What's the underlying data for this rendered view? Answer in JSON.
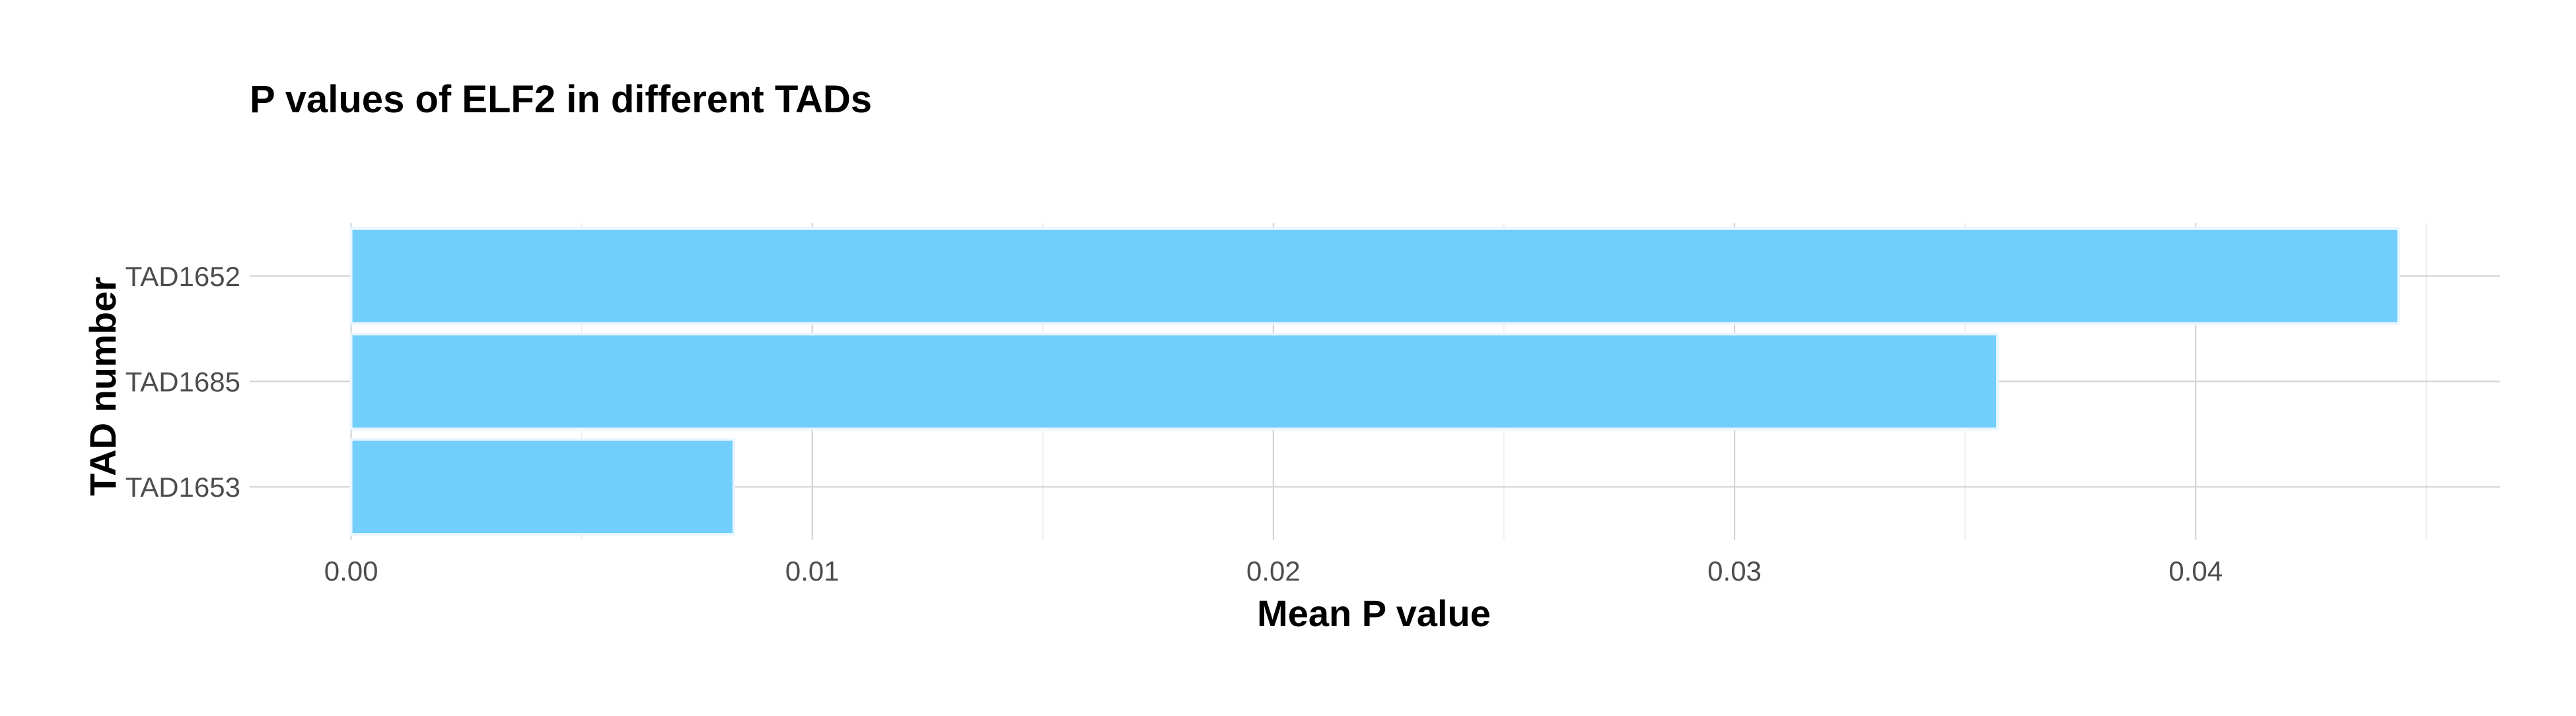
{
  "chart_data": {
    "type": "bar",
    "orientation": "horizontal",
    "title": "P values of ELF2 in different TADs",
    "xlabel": "Mean P value",
    "ylabel": "TAD number",
    "categories": [
      "TAD1652",
      "TAD1685",
      "TAD1653"
    ],
    "values": [
      0.0444,
      0.0357,
      0.0083
    ],
    "xlim": [
      -0.0022,
      0.0466
    ],
    "xticks": [
      0.0,
      0.01,
      0.02,
      0.03,
      0.04
    ],
    "xtick_labels": [
      "0.00",
      "0.01",
      "0.02",
      "0.03",
      "0.04"
    ],
    "grid": true,
    "legend": "none",
    "bar_color": "#72cefb"
  }
}
